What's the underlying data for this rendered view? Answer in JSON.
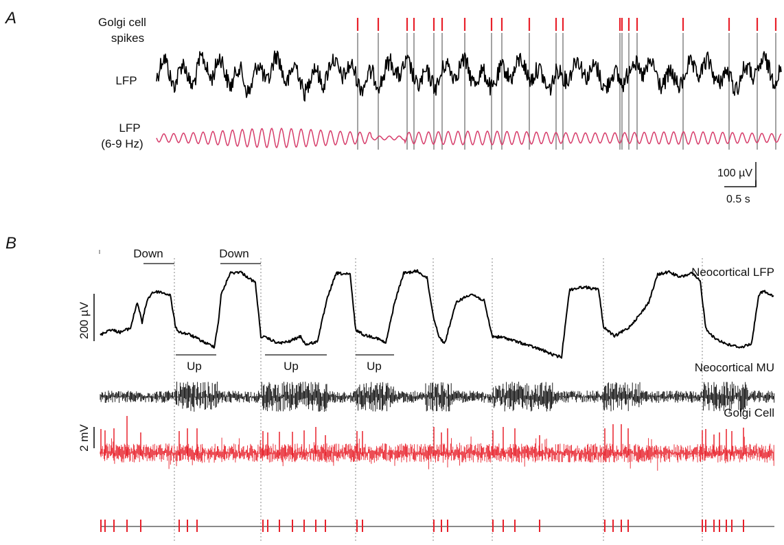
{
  "panel_a": {
    "letter": "A",
    "row_labels": {
      "golgi_spikes_line1": "Golgi cell",
      "golgi_spikes_line2": "spikes",
      "lfp": "LFP",
      "lfp_filtered_line1": "LFP",
      "lfp_filtered_line2": "(6-9 Hz)"
    },
    "scalebar": {
      "amplitude": "100 µV",
      "time": "0.5 s"
    },
    "colors": {
      "spike_ticks": "#e8202a",
      "lfp": "#000000",
      "lfp_filtered": "#d63c6a",
      "spike_lines": "#8a8a8a"
    }
  },
  "panel_b": {
    "letter": "B",
    "trace_labels": {
      "lfp": "Neocortical LFP",
      "mu": "Neocortical MU",
      "golgi": "Golgi Cell"
    },
    "state_labels": {
      "down": "Down",
      "up": "Up"
    },
    "scalebars": {
      "lfp": "200 µV",
      "golgi": "2 mV"
    },
    "colors": {
      "lfp": "#000000",
      "mu": "#000000",
      "golgi": "#e8202a",
      "dotted": "#9a9a9a"
    }
  }
}
